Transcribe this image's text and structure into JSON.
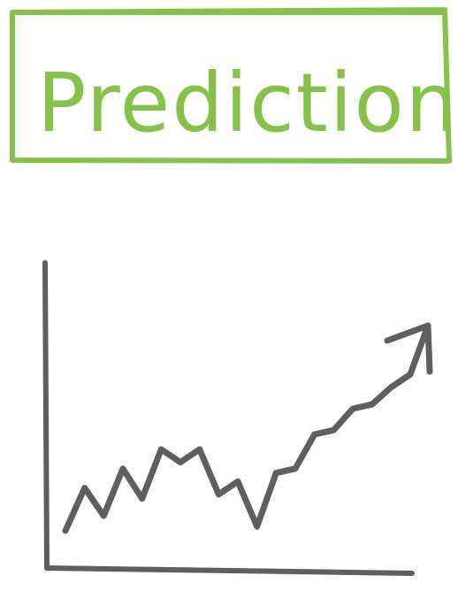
{
  "title": {
    "text": "Prediction"
  },
  "colors": {
    "title_green": "#86c14a",
    "chart_gray": "#5f5f5f",
    "background": "#ffffff"
  },
  "chart_data": {
    "type": "line",
    "title": "",
    "xlabel": "",
    "ylabel": "",
    "trend": "upward",
    "end_marker": "arrow",
    "series": [
      {
        "values": [
          0.05,
          0.25,
          0.12,
          0.34,
          0.2,
          0.43,
          0.37,
          0.43,
          0.22,
          0.28,
          0.07,
          0.32,
          0.34,
          0.5,
          0.52,
          0.62,
          0.64,
          0.72,
          0.78
        ]
      }
    ]
  }
}
